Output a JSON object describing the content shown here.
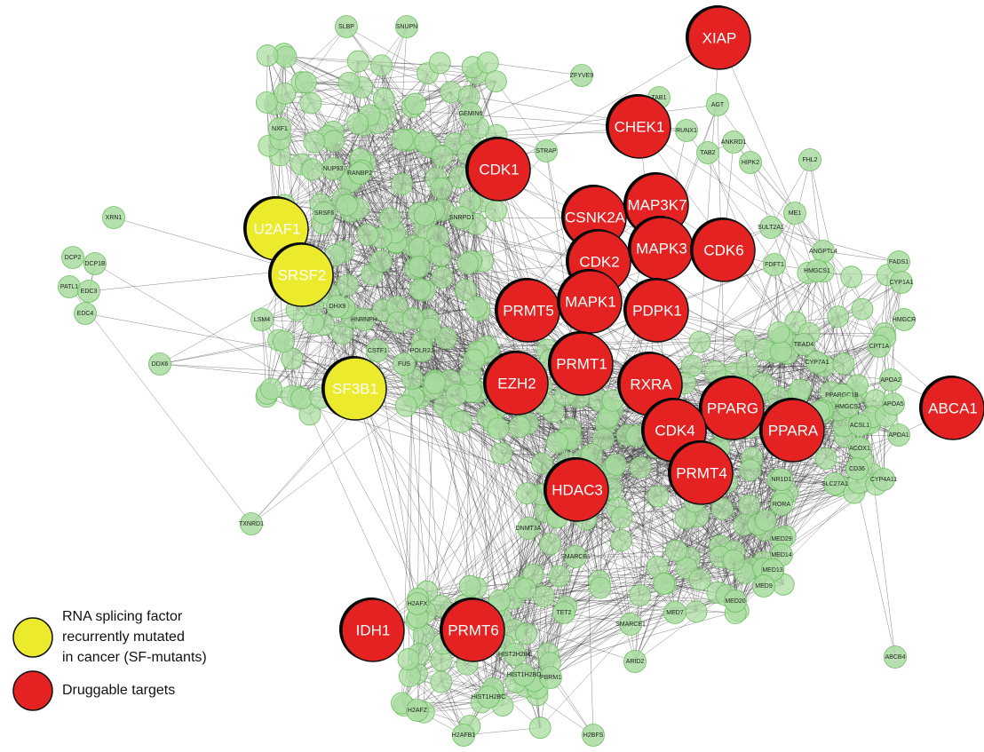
{
  "legend": [
    {
      "lines": [
        "RNA splicing factor",
        "recurrently mutated",
        "in cancer (SF-mutants)"
      ],
      "color": "#ecea2c"
    },
    {
      "lines": [
        "Druggable targets"
      ],
      "color": "#e42222"
    }
  ],
  "other_color": "#a9dca1",
  "sf_mutant_nodes": [
    "U2AF1",
    "SRSF2",
    "SF3B1"
  ],
  "druggable_nodes": [
    "XIAP",
    "CHEK1",
    "CDK1",
    "CSNK2A",
    "MAP3K7",
    "CDK2",
    "MAPK3",
    "CDK6",
    "PRMT5",
    "MAPK1",
    "PDPK1",
    "PRMT1",
    "RXRA",
    "EZH2",
    "PPARG",
    "CDK4",
    "PPARA",
    "ABCA1",
    "PRMT4",
    "HDAC3",
    "IDH1",
    "PRMT6"
  ],
  "other_nodes": [
    "SLBP",
    "SNUPN",
    "LSM4",
    "NXF1",
    "XRN1",
    "DCP2",
    "DCP1B",
    "PATL1",
    "EDC3",
    "EDC4",
    "DDX6",
    "TXNRD1",
    "ZFYVE9",
    "STRAP",
    "TAB1",
    "AGT",
    "RUNX1",
    "TAB2",
    "ANKRD1",
    "HIPK2",
    "FHL2",
    "ME1",
    "SULT2A1",
    "ANGPTL4",
    "FADS1",
    "CYP1A1",
    "FDFT1",
    "HMGCS1",
    "HMGCR",
    "CPT1A",
    "APOA2",
    "APOA5",
    "ACSL1",
    "APOA1",
    "ACOX1",
    "CD36",
    "CYP4A11",
    "SLC27A1",
    "NR1D1",
    "RORA",
    "MED29",
    "MED14",
    "MED13",
    "MED9",
    "MED20",
    "MED7",
    "SMARCE1",
    "ARID2",
    "ABCB4",
    "PBRM1",
    "HIST2H2BE",
    "TET2",
    "DNMT3A",
    "SMARCB1",
    "H2AFX",
    "H2AFZ",
    "H2AFB1",
    "H2BFS",
    "HIST1H2BC",
    "HIST1H2BD",
    "SRSF6",
    "HNRNPH",
    "DHX9",
    "FUS",
    "CSTF1",
    "POLR2J",
    "SNRPD1",
    "RANBP2",
    "NUP93",
    "GEMIN6",
    "PPARGC1B",
    "HMGCS2",
    "TEAD4",
    "CYP7A1"
  ]
}
